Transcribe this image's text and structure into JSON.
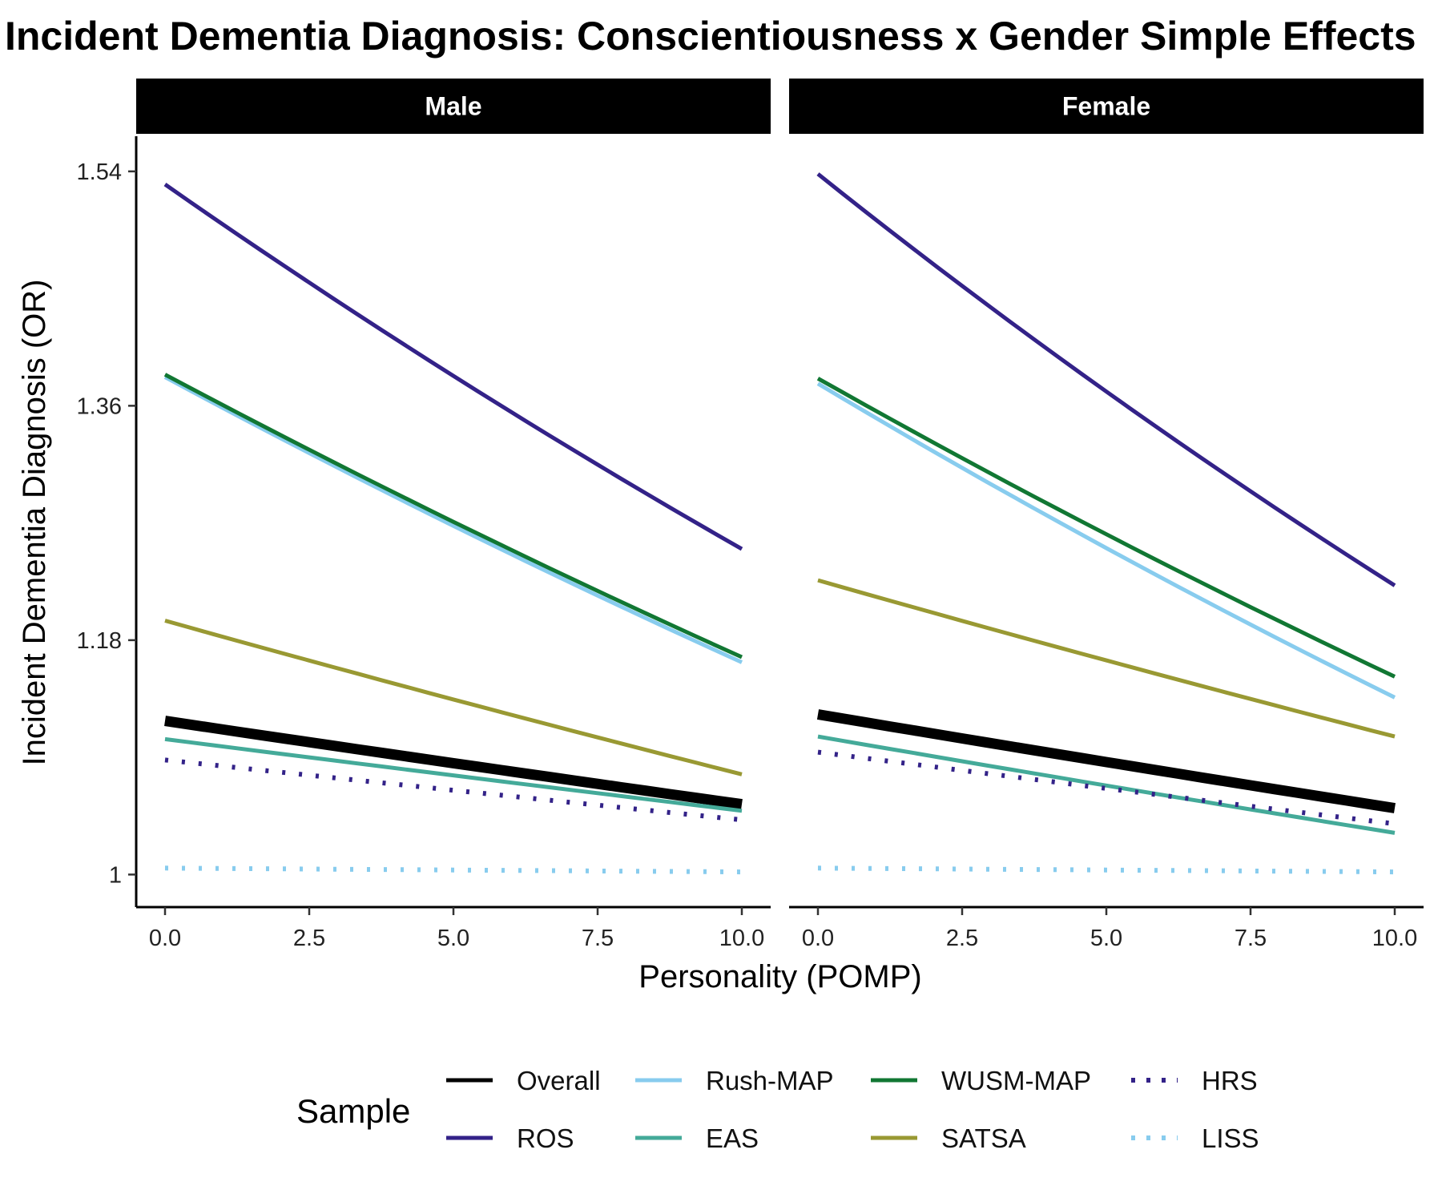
{
  "chart_data": {
    "type": "line",
    "title": "Incident Dementia Diagnosis: Conscientiousness x Gender Simple Effects",
    "xlabel": "Personality (POMP)",
    "ylabel": "Incident Dementia Diagnosis (OR)",
    "xlim": [
      -0.5,
      10.5
    ],
    "ylim": [
      0.975,
      1.567
    ],
    "x_ticks": [
      0,
      2.5,
      5,
      7.5,
      10
    ],
    "x_tick_labels": [
      "0.0",
      "2.5",
      "5.0",
      "7.5",
      "10.0"
    ],
    "y_ticks": [
      1,
      1.18,
      1.36,
      1.54
    ],
    "y_tick_labels": [
      "1",
      "1.18",
      "1.36",
      "1.54"
    ],
    "grid": false,
    "legend": {
      "title": "Sample",
      "position": "bottom",
      "entries": [
        "Overall",
        "ROS",
        "Rush-MAP",
        "EAS",
        "WUSM-MAP",
        "SATSA",
        "HRS",
        "LISS"
      ]
    },
    "facets": [
      {
        "name": "Male",
        "series": [
          {
            "name": "Overall",
            "x": [
              0,
              10
            ],
            "y": [
              1.118,
              1.054
            ],
            "color": "#000000",
            "style": "solid",
            "width": "thick"
          },
          {
            "name": "ROS",
            "x": [
              0,
              10
            ],
            "y": [
              1.53,
              1.25
            ],
            "color": "#332288",
            "style": "solid"
          },
          {
            "name": "Rush-MAP",
            "x": [
              0,
              10
            ],
            "y": [
              1.382,
              1.163
            ],
            "color": "#88CCEE",
            "style": "solid"
          },
          {
            "name": "EAS",
            "x": [
              0,
              10
            ],
            "y": [
              1.104,
              1.049
            ],
            "color": "#44AA99",
            "style": "solid"
          },
          {
            "name": "WUSM-MAP",
            "x": [
              0,
              10
            ],
            "y": [
              1.384,
              1.167
            ],
            "color": "#117733",
            "style": "solid"
          },
          {
            "name": "SATSA",
            "x": [
              0,
              10
            ],
            "y": [
              1.195,
              1.077
            ],
            "color": "#999933",
            "style": "solid"
          },
          {
            "name": "HRS",
            "x": [
              0,
              10
            ],
            "y": [
              1.088,
              1.042
            ],
            "color": "#332288",
            "style": "dotted"
          },
          {
            "name": "LISS",
            "x": [
              0,
              10
            ],
            "y": [
              1.005,
              1.002
            ],
            "color": "#88CCEE",
            "style": "dotted"
          }
        ]
      },
      {
        "name": "Female",
        "series": [
          {
            "name": "Overall",
            "x": [
              0,
              10
            ],
            "y": [
              1.123,
              1.051
            ],
            "color": "#000000",
            "style": "solid",
            "width": "thick"
          },
          {
            "name": "ROS",
            "x": [
              0,
              10
            ],
            "y": [
              1.538,
              1.222
            ],
            "color": "#332288",
            "style": "solid"
          },
          {
            "name": "Rush-MAP",
            "x": [
              0,
              10
            ],
            "y": [
              1.377,
              1.136
            ],
            "color": "#88CCEE",
            "style": "solid"
          },
          {
            "name": "EAS",
            "x": [
              0,
              10
            ],
            "y": [
              1.106,
              1.032
            ],
            "color": "#44AA99",
            "style": "solid"
          },
          {
            "name": "WUSM-MAP",
            "x": [
              0,
              10
            ],
            "y": [
              1.381,
              1.152
            ],
            "color": "#117733",
            "style": "solid"
          },
          {
            "name": "SATSA",
            "x": [
              0,
              10
            ],
            "y": [
              1.226,
              1.106
            ],
            "color": "#999933",
            "style": "solid"
          },
          {
            "name": "HRS",
            "x": [
              0,
              10
            ],
            "y": [
              1.094,
              1.039
            ],
            "color": "#332288",
            "style": "dotted"
          },
          {
            "name": "LISS",
            "x": [
              0,
              10
            ],
            "y": [
              1.005,
              1.002
            ],
            "color": "#88CCEE",
            "style": "dotted"
          }
        ]
      }
    ]
  }
}
